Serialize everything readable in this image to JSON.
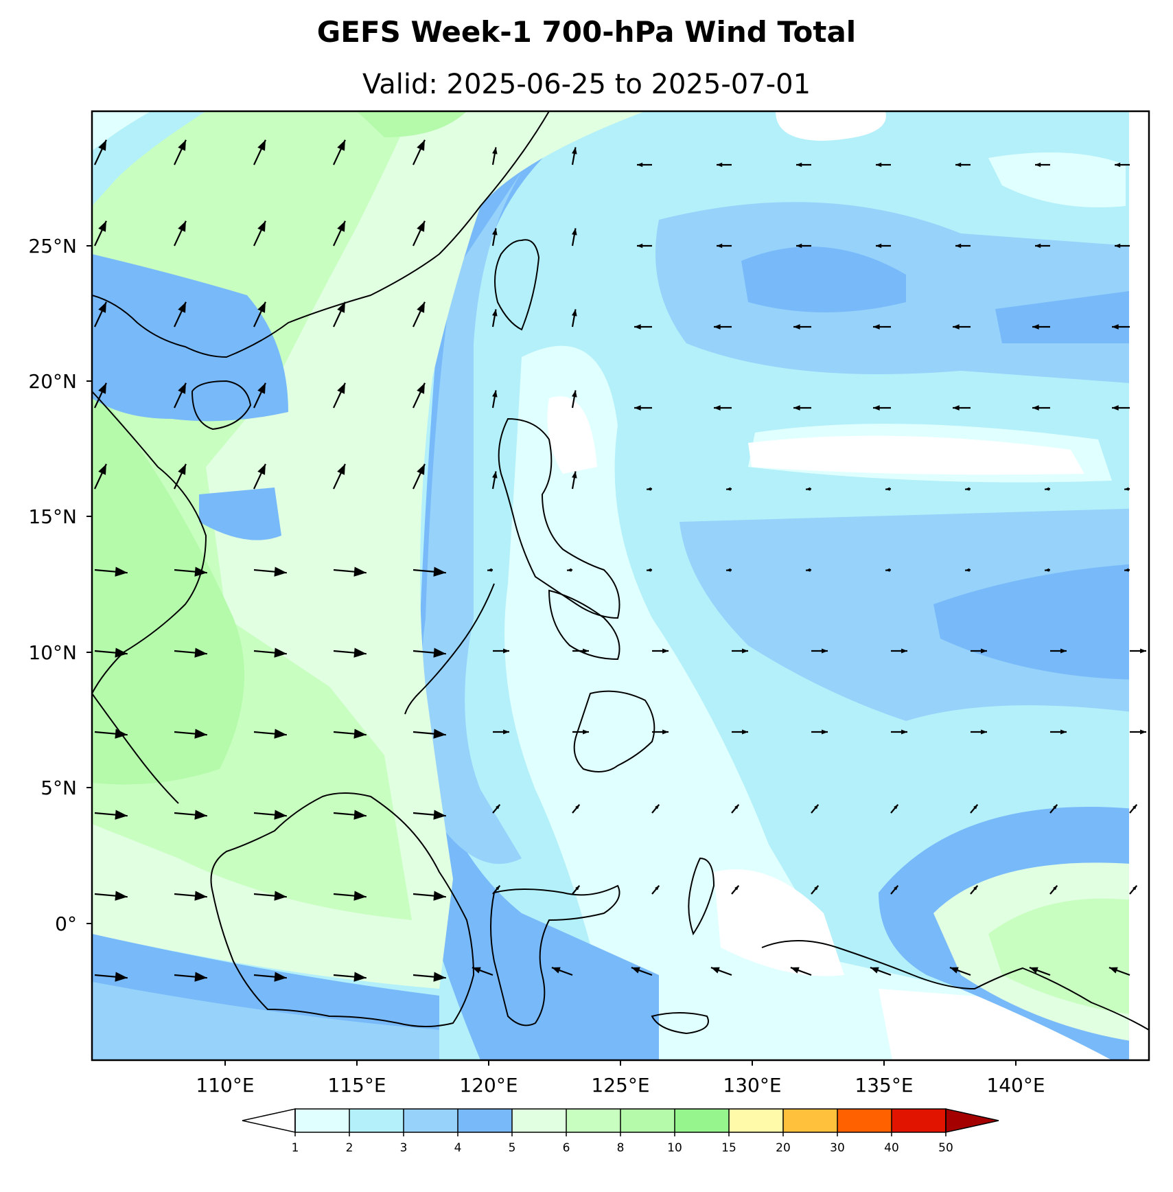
{
  "title": "GEFS Week-1 700-hPa Wind Total",
  "subtitle": "Valid: 2025-06-25 to 2025-07-01",
  "map": {
    "lon_range": [
      105,
      145
    ],
    "lat_range": [
      -5,
      30
    ],
    "lon_ticks": [
      "110°E",
      "115°E",
      "120°E",
      "125°E",
      "130°E",
      "135°E",
      "140°E"
    ],
    "lat_ticks": [
      "25°N",
      "20°N",
      "15°N",
      "10°N",
      "5°N",
      "0°"
    ]
  },
  "colorbar": {
    "extend": "both",
    "levels": [
      "1",
      "2",
      "3",
      "4",
      "5",
      "6",
      "8",
      "10",
      "15",
      "20",
      "30",
      "40",
      "50"
    ],
    "colors": [
      "#ffffff",
      "#e0ffff",
      "#b4f0fa",
      "#96d2fa",
      "#78b9fa",
      "#e1ffe1",
      "#c8ffc0",
      "#b4faaa",
      "#96f58c",
      "#fffaaa",
      "#ffc03c",
      "#ff6000",
      "#e11400",
      "#a50000"
    ]
  }
}
